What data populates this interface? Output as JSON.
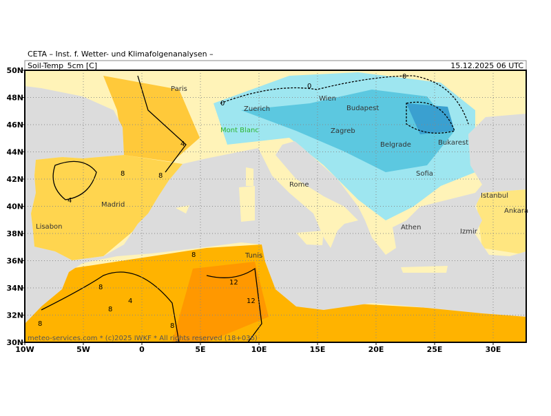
{
  "header": {
    "institute": "CETA – Inst. f. Wetter- und Klimafolgenanalysen –",
    "parameter": "Soil-Temp_5cm [C]",
    "datetime": "15.12.2025 06 UTC"
  },
  "axes": {
    "lat_labels": [
      "50N",
      "48N",
      "46N",
      "44N",
      "42N",
      "40N",
      "38N",
      "36N",
      "34N",
      "32N",
      "30N"
    ],
    "lon_labels": [
      "10W",
      "5W",
      "0",
      "5E",
      "10E",
      "15E",
      "20E",
      "25E",
      "30E"
    ]
  },
  "cities": [
    "Paris",
    "Zuerich",
    "Mont Blanc",
    "Wien",
    "Budapest",
    "Zagreb",
    "Belgrade",
    "Bukarest",
    "Sofia",
    "Rome",
    "Madrid",
    "Lisabon",
    "Tunis",
    "Athen",
    "Izmir",
    "Istanbul",
    "Ankara"
  ],
  "contour_labels": [
    "8",
    "8",
    "4",
    "0",
    "0",
    "0",
    "4",
    "8",
    "8",
    "8",
    "12",
    "12",
    "8",
    "8",
    "4"
  ],
  "footer": "meteo-services.com * (c)2025 IWKF * All rights reserved (18+036)"
}
